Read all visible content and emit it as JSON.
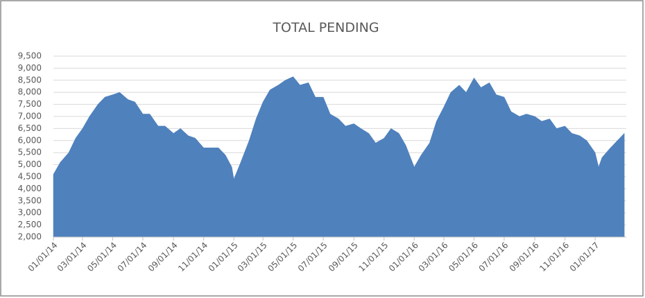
{
  "chart_data": {
    "type": "area",
    "title": "TOTAL PENDING",
    "color": "#4f81bd",
    "grid": true,
    "x": [
      "01/01/14",
      "01/15/14",
      "02/01/14",
      "02/15/14",
      "03/01/14",
      "03/15/14",
      "04/01/14",
      "04/15/14",
      "05/01/14",
      "05/15/14",
      "06/01/14",
      "06/15/14",
      "07/01/14",
      "07/15/14",
      "08/01/14",
      "08/15/14",
      "09/01/14",
      "09/15/14",
      "10/01/14",
      "10/15/14",
      "11/01/14",
      "11/15/14",
      "12/01/14",
      "12/15/14",
      "12/28/14",
      "01/01/15",
      "01/15/15",
      "02/01/15",
      "02/15/15",
      "03/01/15",
      "03/15/15",
      "04/01/15",
      "04/15/15",
      "05/01/15",
      "05/15/15",
      "06/01/15",
      "06/15/15",
      "07/01/15",
      "07/15/15",
      "08/01/15",
      "08/15/15",
      "09/01/15",
      "09/15/15",
      "10/01/15",
      "10/15/15",
      "11/01/15",
      "11/15/15",
      "12/01/15",
      "12/15/15",
      "01/01/16",
      "01/15/16",
      "02/01/16",
      "02/15/16",
      "03/01/16",
      "03/15/16",
      "04/01/16",
      "04/15/16",
      "05/01/16",
      "05/15/16",
      "06/01/16",
      "06/15/16",
      "07/01/16",
      "07/15/16",
      "08/01/16",
      "08/15/16",
      "09/01/16",
      "09/15/16",
      "10/01/16",
      "10/15/16",
      "11/01/16",
      "11/15/16",
      "12/01/16",
      "12/15/16",
      "01/01/17",
      "01/08/17",
      "01/15/17",
      "02/01/17",
      "02/15/17",
      "03/01/17"
    ],
    "values": [
      4600,
      5100,
      5500,
      6100,
      6500,
      7000,
      7500,
      7800,
      7900,
      8000,
      7700,
      7600,
      7100,
      7100,
      6600,
      6600,
      6300,
      6500,
      6200,
      6100,
      5700,
      5700,
      5700,
      5400,
      4900,
      4400,
      5100,
      6000,
      6900,
      7600,
      8100,
      8300,
      8500,
      8650,
      8300,
      8400,
      7800,
      7800,
      7100,
      6900,
      6600,
      6700,
      6500,
      6300,
      5900,
      6100,
      6500,
      6300,
      5800,
      4900,
      5400,
      5900,
      6800,
      7400,
      8000,
      8300,
      8000,
      8600,
      8200,
      8400,
      7900,
      7800,
      7200,
      7000,
      7100,
      7000,
      6800,
      6900,
      6500,
      6600,
      6300,
      6200,
      6000,
      5500,
      4900,
      5300,
      5700,
      6000,
      6300
    ],
    "xlim": [
      "01/01/14",
      "03/05/17"
    ],
    "xticks": [
      "01/01/14",
      "03/01/14",
      "05/01/14",
      "07/01/14",
      "09/01/14",
      "11/01/14",
      "01/01/15",
      "03/01/15",
      "05/01/15",
      "07/01/15",
      "09/01/15",
      "11/01/15",
      "01/01/16",
      "03/01/16",
      "05/01/16",
      "07/01/16",
      "09/01/16",
      "11/01/16",
      "01/01/17"
    ],
    "ylim": [
      2000,
      9500
    ],
    "yticks": [
      {
        "value": 2000,
        "label": "2,000"
      },
      {
        "value": 2500,
        "label": "2,500"
      },
      {
        "value": 3000,
        "label": "3,000"
      },
      {
        "value": 3500,
        "label": "3,500"
      },
      {
        "value": 4000,
        "label": "4,000"
      },
      {
        "value": 4500,
        "label": "4,500"
      },
      {
        "value": 5000,
        "label": "5,000"
      },
      {
        "value": 5500,
        "label": "5,500"
      },
      {
        "value": 6000,
        "label": "6,000"
      },
      {
        "value": 6500,
        "label": "6,500"
      },
      {
        "value": 7000,
        "label": "7,000"
      },
      {
        "value": 7500,
        "label": "7,500"
      },
      {
        "value": 8000,
        "label": "8,000"
      },
      {
        "value": 8500,
        "label": "8,500"
      },
      {
        "value": 9000,
        "label": "9,000"
      },
      {
        "value": 9500,
        "label": "9,500"
      }
    ]
  }
}
